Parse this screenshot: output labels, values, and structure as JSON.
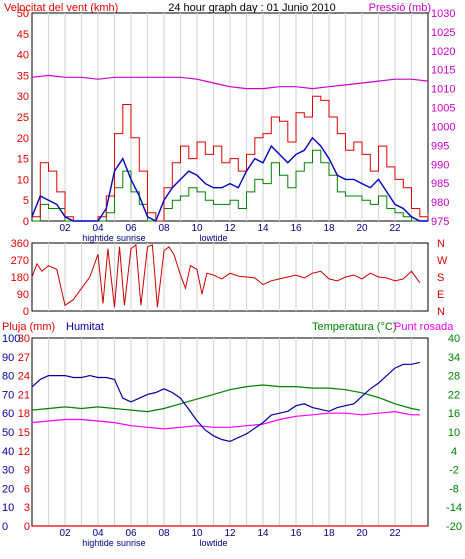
{
  "header": {
    "wind_speed_label": "Velocitat del vent (kmh)",
    "title": "24 hour graph day : 01 Junio 2010",
    "pressure_label": "Pressió (mb)"
  },
  "lower_header": {
    "rain_label": "Pluja (mm)",
    "humidity_label": "Humitat",
    "temperature_label": "Temperatura (°C)",
    "dewpoint_label": "Punt rosada"
  },
  "x_axis": {
    "ticks": [
      "02",
      "04",
      "06",
      "08",
      "10",
      "12",
      "14",
      "16",
      "18",
      "20",
      "22"
    ],
    "tide_labels": [
      {
        "text": "hightide",
        "hour": 4
      },
      {
        "text": "sunrise",
        "hour": 6
      },
      {
        "text": "lowtide",
        "hour": 11
      }
    ]
  },
  "colors": {
    "wind_gust": "#e00000",
    "wind_avg": "#0000c0",
    "wind_green": "#008000",
    "pressure": "#cc00cc",
    "direction": "#cc0000",
    "humidity": "#0000a0",
    "temperature": "#008000",
    "dewpoint": "#ff00ff",
    "rain": "#e00000"
  },
  "chart_data": [
    {
      "id": "wind",
      "type": "line",
      "title": "24 hour graph day : 01 Junio 2010",
      "ylabel": "Velocitat del vent (kmh)",
      "y2label": "Pressió (mb)",
      "xlim": [
        0,
        24
      ],
      "ylim": [
        0,
        50
      ],
      "yticks": [
        0,
        5,
        10,
        15,
        20,
        25,
        30,
        35,
        40,
        45,
        50
      ],
      "y2lim": [
        975,
        1030
      ],
      "y2ticks": [
        975,
        980,
        985,
        990,
        995,
        1000,
        1005,
        1010,
        1015,
        1020,
        1025,
        1030
      ],
      "series": [
        {
          "key": "gust",
          "x": [
            0,
            0.5,
            1,
            1.5,
            2,
            2.5,
            3,
            3.5,
            4,
            4.5,
            5,
            5.5,
            6,
            6.5,
            7,
            7.5,
            8,
            8.5,
            9,
            9.5,
            10,
            10.5,
            11,
            11.5,
            12,
            12.5,
            13,
            13.5,
            14,
            14.5,
            15,
            15.5,
            16,
            16.5,
            17,
            17.5,
            18,
            18.5,
            19,
            19.5,
            20,
            20.5,
            21,
            21.5,
            22,
            22.5,
            23,
            23.5,
            24
          ],
          "values": [
            1,
            14,
            12,
            7,
            1,
            0,
            0,
            0,
            1,
            6,
            21,
            28,
            20,
            12,
            2,
            0,
            8,
            14,
            18,
            15,
            19,
            16,
            18,
            14,
            15,
            12,
            16,
            20,
            21,
            25,
            24,
            19,
            26,
            25,
            30,
            29,
            25,
            21,
            17,
            19,
            16,
            12,
            18,
            13,
            10,
            8,
            3,
            1,
            2
          ]
        },
        {
          "key": "average",
          "x": [
            0,
            0.5,
            1,
            1.5,
            2,
            2.5,
            3,
            3.5,
            4,
            4.5,
            5,
            5.5,
            6,
            6.5,
            7,
            7.5,
            8,
            8.5,
            9,
            9.5,
            10,
            10.5,
            11,
            11.5,
            12,
            12.5,
            13,
            13.5,
            14,
            14.5,
            15,
            15.5,
            16,
            16.5,
            17,
            17.5,
            18,
            18.5,
            19,
            19.5,
            20,
            20.5,
            21,
            21.5,
            22,
            22.5,
            23,
            23.5,
            24
          ],
          "values": [
            1,
            6,
            5,
            4,
            1,
            0,
            0,
            0,
            0,
            3,
            12,
            15,
            10,
            6,
            1,
            0,
            5,
            8,
            10,
            12,
            11,
            9,
            8,
            8,
            9,
            8,
            12,
            15,
            14,
            18,
            16,
            14,
            16,
            17,
            20,
            18,
            15,
            11,
            10,
            10,
            9,
            8,
            10,
            7,
            4,
            3,
            1,
            0,
            0
          ]
        },
        {
          "key": "wind_green",
          "x": [
            0,
            0.5,
            1,
            1.5,
            2,
            2.5,
            3,
            3.5,
            4,
            4.5,
            5,
            5.5,
            6,
            6.5,
            7,
            7.5,
            8,
            8.5,
            9,
            9.5,
            10,
            10.5,
            11,
            11.5,
            12,
            12.5,
            13,
            13.5,
            14,
            14.5,
            15,
            15.5,
            16,
            16.5,
            17,
            17.5,
            18,
            18.5,
            19,
            19.5,
            20,
            20.5,
            21,
            21.5,
            22,
            22.5,
            23,
            23.5,
            24
          ],
          "values": [
            0,
            4,
            3,
            3,
            0,
            0,
            0,
            0,
            0,
            2,
            8,
            12,
            7,
            4,
            0,
            0,
            3,
            5,
            6,
            8,
            7,
            5,
            4,
            4,
            5,
            3,
            7,
            10,
            9,
            14,
            11,
            8,
            12,
            14,
            17,
            14,
            11,
            7,
            6,
            6,
            5,
            4,
            6,
            3,
            2,
            1,
            0,
            0,
            0
          ]
        },
        {
          "key": "pressure",
          "axis": "y2",
          "x": [
            0,
            1,
            2,
            3,
            4,
            5,
            6,
            7,
            8,
            9,
            10,
            11,
            12,
            13,
            14,
            15,
            16,
            17,
            18,
            19,
            20,
            21,
            22,
            23,
            24
          ],
          "values": [
            1013,
            1013.5,
            1013,
            1013,
            1012.5,
            1013,
            1013,
            1013,
            1013,
            1013,
            1012.5,
            1011.5,
            1010.5,
            1010,
            1010,
            1010.5,
            1010.5,
            1010,
            1010.5,
            1011,
            1011.5,
            1012,
            1012.5,
            1012.5,
            1012
          ]
        }
      ]
    },
    {
      "id": "direction",
      "type": "line",
      "xlim": [
        0,
        24
      ],
      "ylim": [
        0,
        360
      ],
      "yticks": [
        0,
        90,
        180,
        270,
        360
      ],
      "ytick_labels": [
        "0",
        "90",
        "180",
        "270",
        "360"
      ],
      "y2tick_labels": [
        "N",
        "E",
        "S",
        "W",
        "N"
      ],
      "series": [
        {
          "key": "direction",
          "x": [
            0,
            0.3,
            0.6,
            1,
            1.5,
            2,
            2.5,
            3,
            3.5,
            4,
            4.3,
            4.6,
            5,
            5.3,
            5.6,
            6,
            6.3,
            6.6,
            7,
            7.3,
            7.6,
            8,
            8.3,
            8.6,
            9,
            9.3,
            9.6,
            10,
            10.3,
            10.6,
            11,
            11.5,
            12,
            12.5,
            13,
            13.5,
            14,
            14.5,
            15,
            15.5,
            16,
            16.5,
            17,
            17.5,
            18,
            18.5,
            19,
            19.5,
            20,
            20.5,
            21,
            21.5,
            22,
            22.5,
            23,
            23.5
          ],
          "values": [
            180,
            250,
            210,
            240,
            220,
            30,
            60,
            120,
            180,
            300,
            40,
            330,
            20,
            340,
            30,
            330,
            350,
            30,
            340,
            350,
            20,
            320,
            340,
            300,
            190,
            120,
            240,
            220,
            90,
            200,
            190,
            170,
            200,
            185,
            180,
            175,
            140,
            160,
            170,
            180,
            190,
            175,
            200,
            210,
            170,
            160,
            180,
            190,
            170,
            200,
            180,
            175,
            160,
            170,
            210,
            150
          ]
        }
      ]
    },
    {
      "id": "temperature",
      "type": "line",
      "xlim": [
        0,
        24
      ],
      "ylabel": "Pluja (mm)",
      "ylim": [
        0,
        30
      ],
      "yticks": [
        0,
        3,
        6,
        9,
        12,
        15,
        18,
        21,
        24,
        27,
        30
      ],
      "humidity_ylabel": "Humitat",
      "humidity_lim": [
        0,
        100
      ],
      "humidity_ticks": [
        0,
        10,
        20,
        30,
        40,
        50,
        60,
        70,
        80,
        90,
        100
      ],
      "y2label": "Temperatura (°C)",
      "y2lim": [
        -20,
        40
      ],
      "y2ticks": [
        -20,
        -14,
        -8,
        -2,
        4,
        10,
        16,
        22,
        28,
        34,
        40
      ],
      "series": [
        {
          "key": "humidity",
          "axis": "humidity",
          "x": [
            0,
            0.5,
            1,
            1.5,
            2,
            2.5,
            3,
            3.5,
            4,
            4.5,
            5,
            5.5,
            6,
            6.5,
            7,
            7.5,
            8,
            8.5,
            9,
            9.5,
            10,
            10.5,
            11,
            11.5,
            12,
            12.5,
            13,
            13.5,
            14,
            14.5,
            15,
            15.5,
            16,
            16.5,
            17,
            17.5,
            18,
            18.5,
            19,
            19.5,
            20,
            20.5,
            21,
            21.5,
            22,
            22.5,
            23,
            23.5
          ],
          "values": [
            74,
            78,
            80,
            80,
            80,
            79,
            79,
            80,
            79,
            79,
            78,
            68,
            66,
            68,
            70,
            71,
            73,
            71,
            68,
            62,
            56,
            51,
            48,
            46,
            45,
            47,
            49,
            52,
            55,
            59,
            60,
            61,
            64,
            65,
            63,
            62,
            61,
            63,
            64,
            65,
            69,
            73,
            76,
            80,
            84,
            86,
            86,
            87
          ]
        },
        {
          "key": "temperature",
          "axis": "y2",
          "x": [
            0,
            1,
            2,
            3,
            4,
            5,
            6,
            7,
            8,
            9,
            10,
            11,
            12,
            13,
            14,
            15,
            16,
            17,
            18,
            19,
            20,
            21,
            22,
            23,
            23.5
          ],
          "values": [
            17,
            17.5,
            18,
            17.5,
            18,
            17.5,
            17,
            16.5,
            17.5,
            19,
            20.5,
            22,
            23.5,
            24.5,
            25,
            24.5,
            24.5,
            24,
            24,
            23.5,
            22.5,
            21,
            19,
            17.5,
            17
          ]
        },
        {
          "key": "dewpoint",
          "axis": "y2",
          "x": [
            0,
            1,
            2,
            3,
            4,
            5,
            6,
            7,
            8,
            9,
            10,
            11,
            12,
            13,
            14,
            15,
            16,
            17,
            18,
            19,
            20,
            21,
            22,
            23,
            23.5
          ],
          "values": [
            13,
            13.5,
            14,
            14,
            13.5,
            13,
            12,
            11.5,
            11,
            11.5,
            12,
            11.5,
            11.5,
            12,
            12.5,
            14,
            15,
            15.5,
            16,
            16,
            15.5,
            16,
            16.5,
            15.5,
            15.5
          ]
        },
        {
          "key": "rain",
          "axis": "y",
          "x": [
            0,
            24
          ],
          "values": [
            0,
            0
          ]
        }
      ]
    }
  ]
}
